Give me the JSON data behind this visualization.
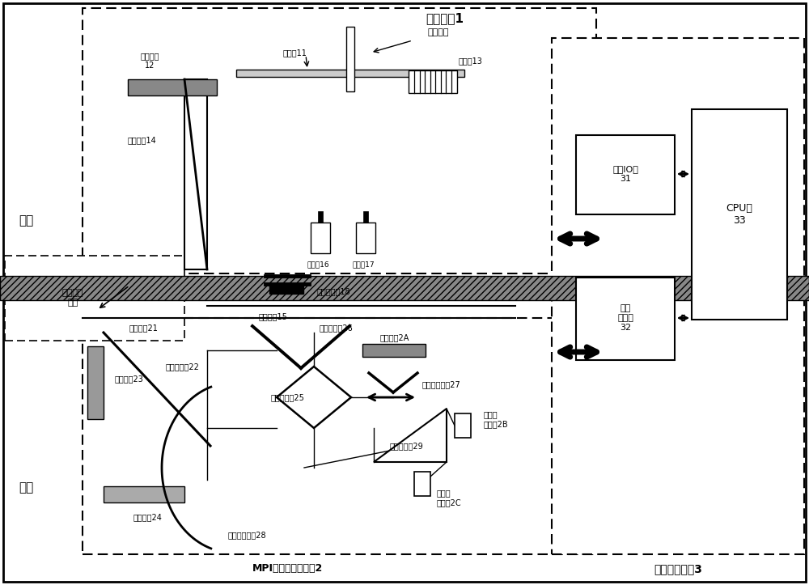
{
  "bg_color": "#ffffff",
  "title_calib": "校准设备1",
  "title_spectrometer": "MPI型傅立叶光谱仪2",
  "title_control": "系统控制设备3",
  "label_outdoor": "室外",
  "label_indoor": "室内",
  "label_signal": "信号传输\n装置",
  "components": {
    "rotating_arm": "旋转臂11",
    "rotating_device": "旋转装置",
    "calib_blackbody": "校准黑体\n12",
    "cleaner": "清洁刷13",
    "dielectric_window14": "介质窗口14",
    "thermometer16": "温度计16",
    "thermometer17": "温度计17",
    "limit_switch": "嵌位开关组18",
    "dielectric_window15": "介质窗口15",
    "dielectric_window21": "介质窗口21",
    "beam_splitter22": "波束分离器22",
    "ref_blackbody": "参考黑体23",
    "absorb_blackbody24": "吸收黑体24",
    "fixed_roof_mirror26": "固定屋面镜26",
    "beam_splitter25": "波束分离器25",
    "movable_roof_mirror27": "可移动屋面镜27",
    "absorb_blackbody2A": "吸收黑体2A",
    "parabolic_mirror28": "抛物面反射镜28",
    "beam_splitter29": "波束分离器29",
    "detector2B": "太赫兹\n探测器2B",
    "detector2C": "太赫兹\n探测器2C",
    "digital_io": "数字IO板\n31",
    "data_acq": "数据\n采集板\n32",
    "cpu_board": "CPU板\n33"
  }
}
